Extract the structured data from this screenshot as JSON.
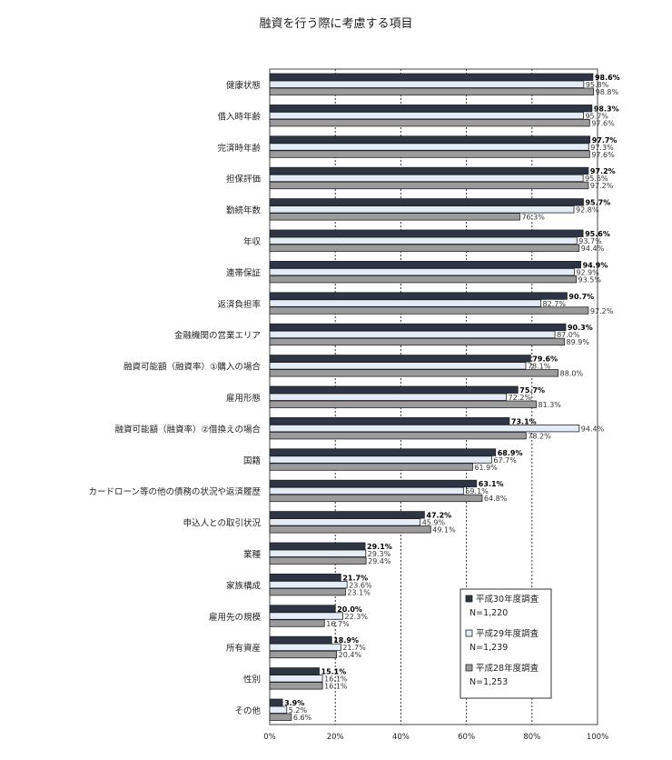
{
  "chart_data": {
    "type": "bar",
    "orientation": "horizontal",
    "title": "融資を行う際に考慮する項目",
    "xlabel": "",
    "ylabel": "",
    "xlim": [
      0,
      100
    ],
    "x_ticks": [
      "0%",
      "20%",
      "40%",
      "60%",
      "80%",
      "100%"
    ],
    "grid": "dashed-vertical",
    "legend_position": "bottom-right",
    "categories": [
      "健康状態",
      "借入時年齢",
      "完済時年齢",
      "担保評価",
      "勤続年数",
      "年収",
      "連帯保証",
      "返済負担率",
      "金融機関の営業エリア",
      "融資可能額（融資率）①購入の場合",
      "雇用形態",
      "融資可能額（融資率）②借換えの場合",
      "国籍",
      "カードローン等の他の債務の状況や返済履歴",
      "申込人との取引状況",
      "業種",
      "家族構成",
      "雇用先の規模",
      "所有資産",
      "性別",
      "その他"
    ],
    "series": [
      {
        "name": "平成30年度調査",
        "n": "N=1,220",
        "color": "#2e3546",
        "values": [
          98.6,
          98.3,
          97.7,
          97.2,
          95.7,
          95.6,
          94.9,
          90.7,
          90.3,
          79.6,
          75.7,
          73.1,
          68.9,
          63.1,
          47.2,
          29.1,
          21.7,
          20.0,
          18.9,
          15.1,
          3.9
        ],
        "labels": [
          "98.6%",
          "98.3%",
          "97.7%",
          "97.2%",
          "95.7%",
          "95.6%",
          "94.9%",
          "90.7%",
          "90.3%",
          "79.6%",
          "75.7%",
          "73.1%",
          "68.9%",
          "63.1%",
          "47.2%",
          "29.1%",
          "21.7%",
          "20.0%",
          "18.9%",
          "15.1%",
          "3.9%"
        ]
      },
      {
        "name": "平成29年度調査",
        "n": "N=1,239",
        "color": "#e4ecf7",
        "values": [
          95.8,
          95.7,
          97.3,
          95.6,
          92.8,
          93.7,
          92.9,
          82.7,
          87.0,
          78.1,
          72.2,
          94.4,
          67.7,
          59.1,
          45.9,
          29.3,
          23.6,
          22.3,
          21.7,
          16.1,
          5.2
        ],
        "labels": [
          "95.8%",
          "95.7%",
          "97.3%",
          "95.6%",
          "92.8%",
          "93.7%",
          "92.9%",
          "82.7%",
          "87.0%",
          "78.1%",
          "72.2%",
          "94.4%",
          "67.7%",
          "59.1%",
          "45.9%",
          "29.3%",
          "23.6%",
          "22.3%",
          "21.7%",
          "16.1%",
          "5.2%"
        ]
      },
      {
        "name": "平成28年度調査",
        "n": "N=1,253",
        "color": "#9b9b9b",
        "values": [
          98.8,
          97.6,
          97.6,
          97.2,
          76.3,
          94.4,
          93.5,
          97.2,
          89.9,
          88.0,
          81.3,
          78.2,
          61.9,
          64.8,
          49.1,
          29.4,
          23.1,
          16.7,
          20.4,
          16.1,
          6.6
        ],
        "labels": [
          "98.8%",
          "97.6%",
          "97.6%",
          "97.2%",
          "76.3%",
          "94.4%",
          "93.5%",
          "97.2%",
          "89.9%",
          "88.0%",
          "81.3%",
          "78.2%",
          "61.9%",
          "64.8%",
          "49.1%",
          "29.4%",
          "23.1%",
          "16.7%",
          "20.4%",
          "16.1%",
          "6.6%"
        ]
      }
    ]
  }
}
